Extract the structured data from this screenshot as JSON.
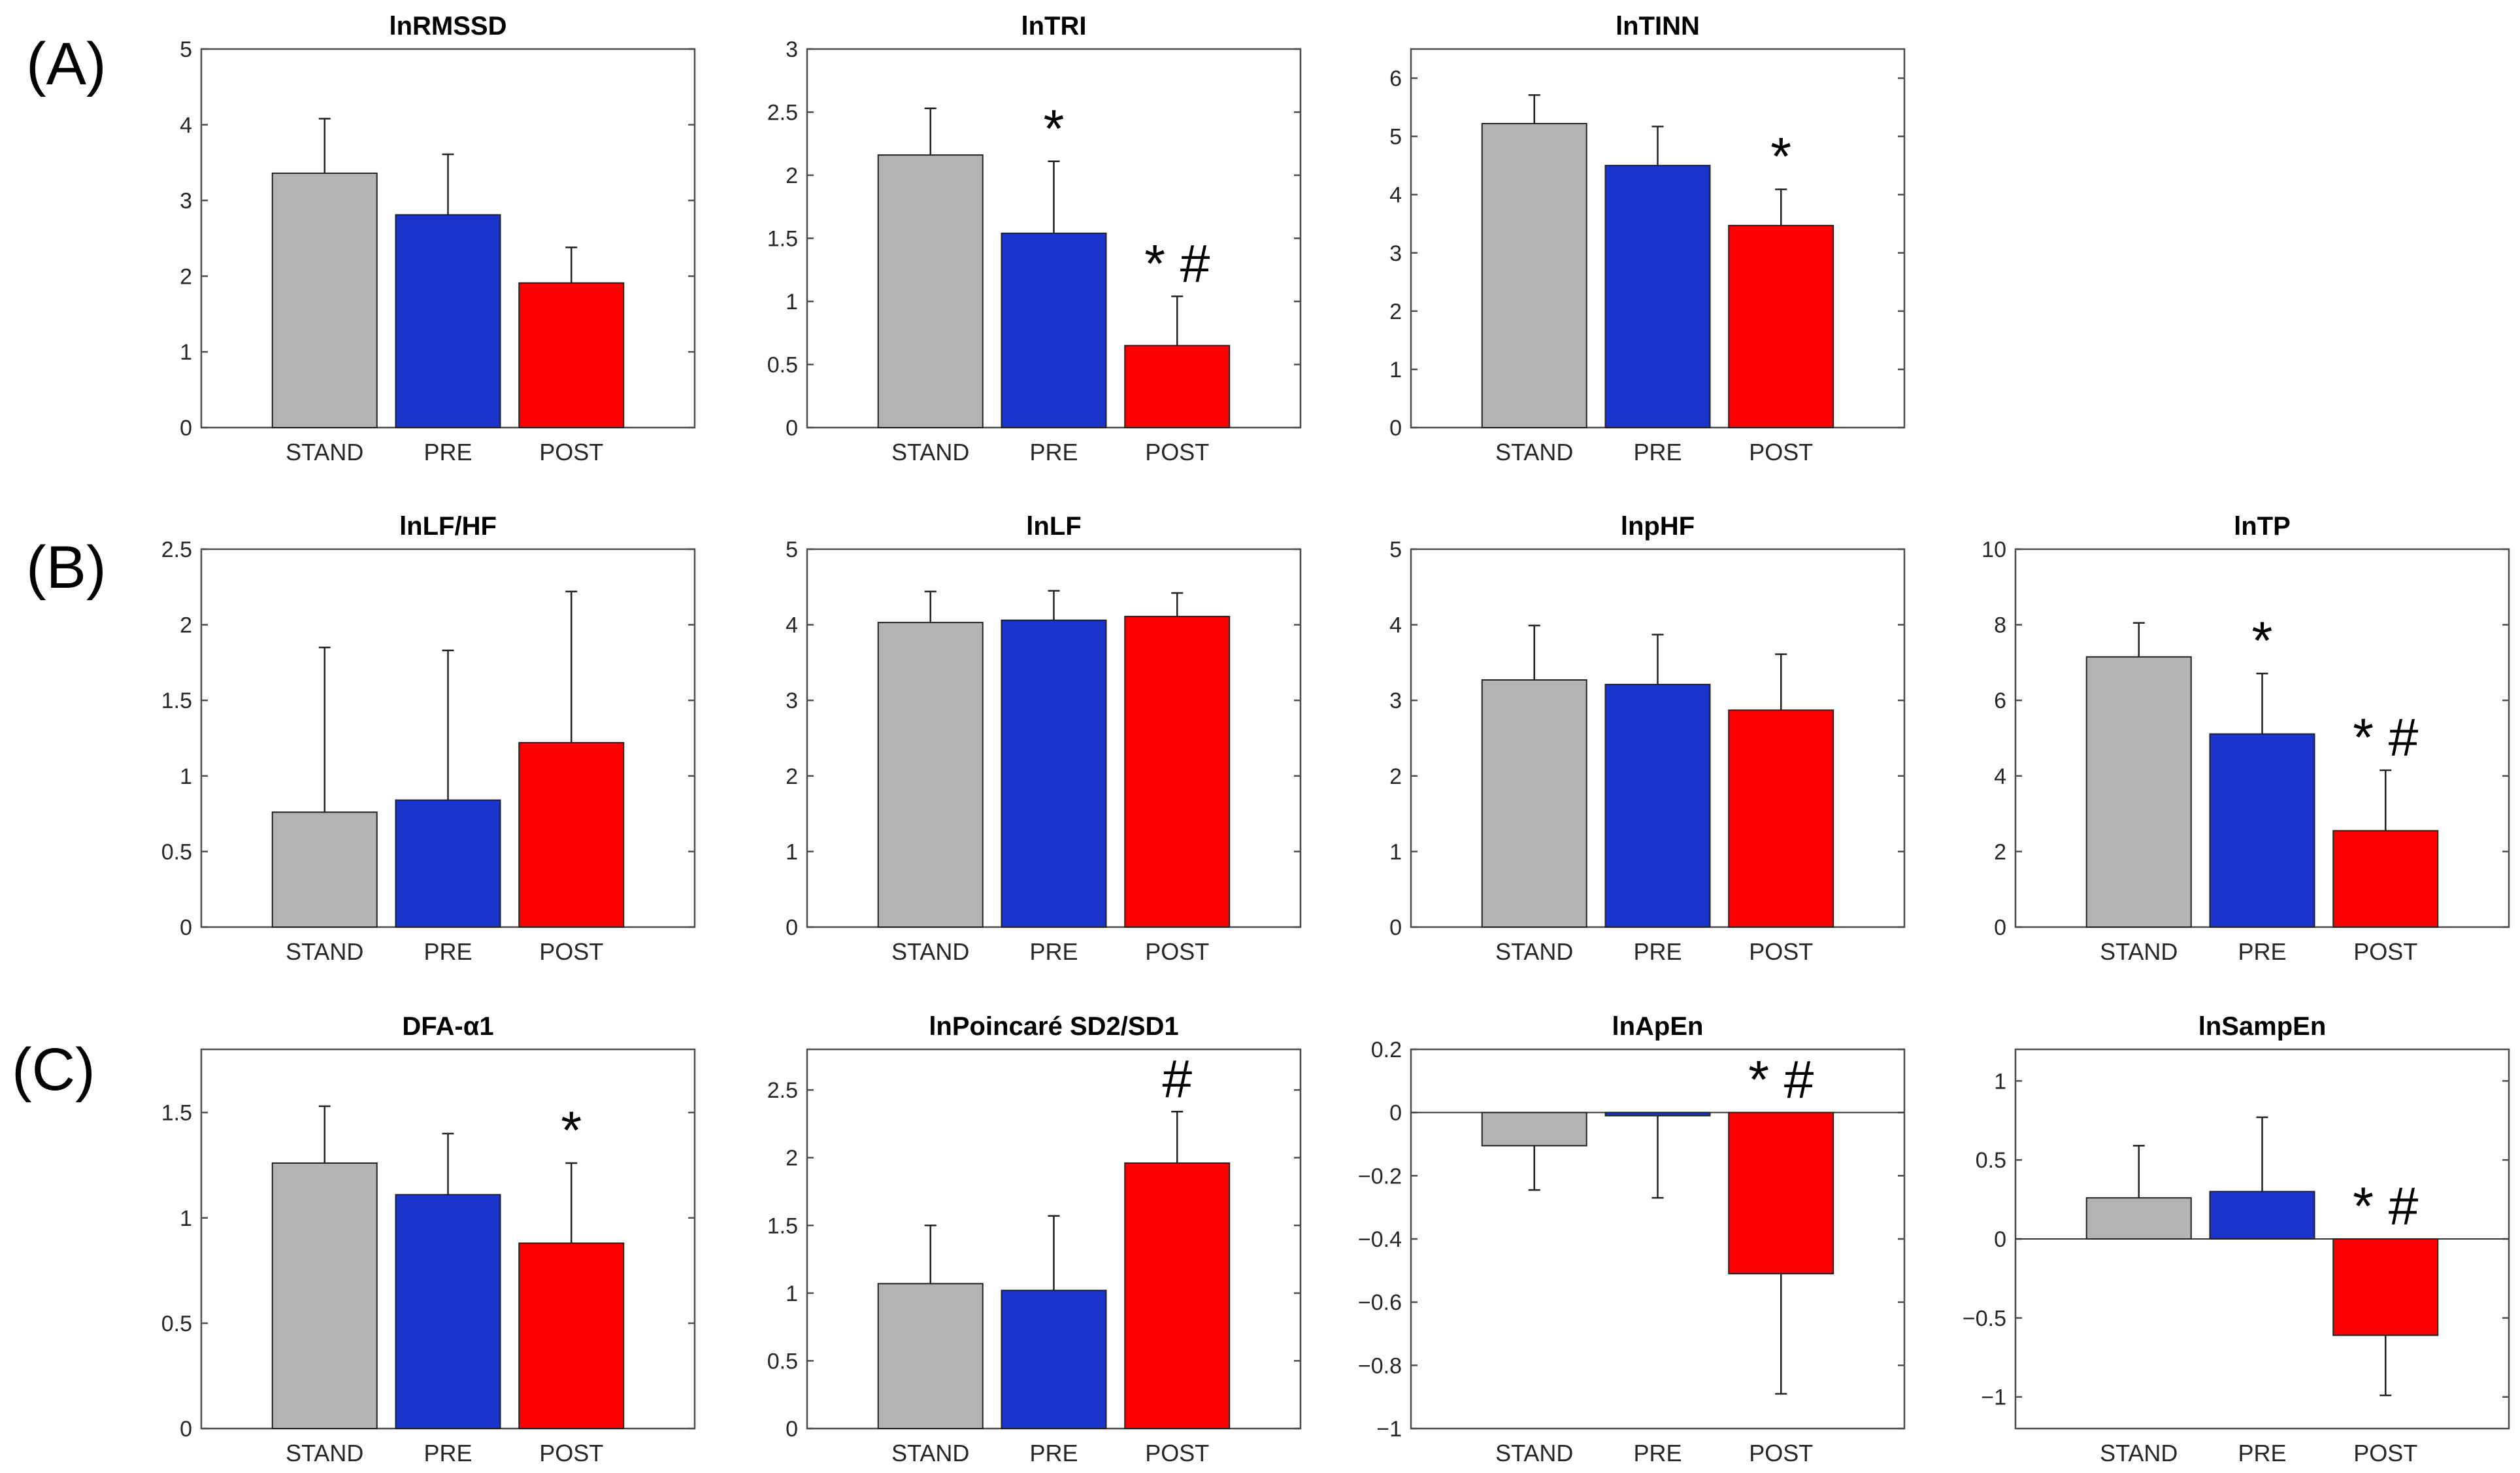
{
  "row_labels": [
    "(A)",
    "(B)",
    "(C)"
  ],
  "colors": {
    "STAND": "#b3b3b3",
    "PRE": "#1a33cc",
    "POST": "#ff0000",
    "axis": "#4d4d4d",
    "text": "#262626"
  },
  "chart_data": [
    {
      "type": "bar",
      "title": "lnRMSSD",
      "categories": [
        "STAND",
        "PRE",
        "POST"
      ],
      "values": [
        3.36,
        2.81,
        1.91
      ],
      "errors": [
        0.72,
        0.8,
        0.47
      ],
      "ylim": [
        0,
        5
      ],
      "ticks": [
        0,
        1,
        2,
        3,
        4,
        5
      ],
      "tick_labels": [
        "0",
        "1",
        "2",
        "3",
        "4",
        "5"
      ],
      "annotations": [
        "",
        "",
        ""
      ]
    },
    {
      "type": "bar",
      "title": "lnTRI",
      "categories": [
        "STAND",
        "PRE",
        "POST"
      ],
      "values": [
        2.16,
        1.54,
        0.65
      ],
      "errors": [
        0.37,
        0.57,
        0.39
      ],
      "ylim": [
        0,
        3
      ],
      "ticks": [
        0,
        0.5,
        1,
        1.5,
        2,
        2.5,
        3
      ],
      "tick_labels": [
        "0",
        "0.5",
        "1",
        "1.5",
        "2",
        "2.5",
        "3"
      ],
      "annotations": [
        "",
        "*",
        "*#"
      ]
    },
    {
      "type": "bar",
      "title": "lnTINN",
      "categories": [
        "STAND",
        "PRE",
        "POST"
      ],
      "values": [
        5.22,
        4.5,
        3.47
      ],
      "errors": [
        0.49,
        0.67,
        0.62
      ],
      "ylim": [
        0,
        6.5
      ],
      "ticks": [
        0,
        1,
        2,
        3,
        4,
        5,
        6
      ],
      "tick_labels": [
        "0",
        "1",
        "2",
        "3",
        "4",
        "5",
        "6"
      ],
      "annotations": [
        "",
        "",
        "*"
      ]
    },
    {
      "type": "bar",
      "title": "lnLF/HF",
      "categories": [
        "STAND",
        "PRE",
        "POST"
      ],
      "values": [
        0.76,
        0.84,
        1.22
      ],
      "errors": [
        1.09,
        0.99,
        1.0
      ],
      "ylim": [
        0,
        2.5
      ],
      "ticks": [
        0,
        0.5,
        1,
        1.5,
        2,
        2.5
      ],
      "tick_labels": [
        "0",
        "0.5",
        "1",
        "1.5",
        "2",
        "2.5"
      ],
      "annotations": [
        "",
        "",
        ""
      ]
    },
    {
      "type": "bar",
      "title": "lnLF",
      "categories": [
        "STAND",
        "PRE",
        "POST"
      ],
      "values": [
        4.03,
        4.06,
        4.11
      ],
      "errors": [
        0.41,
        0.39,
        0.31
      ],
      "ylim": [
        0,
        5
      ],
      "ticks": [
        0,
        1,
        2,
        3,
        4,
        5
      ],
      "tick_labels": [
        "0",
        "1",
        "2",
        "3",
        "4",
        "5"
      ],
      "annotations": [
        "",
        "",
        ""
      ]
    },
    {
      "type": "bar",
      "title": "lnpHF",
      "categories": [
        "STAND",
        "PRE",
        "POST"
      ],
      "values": [
        3.27,
        3.21,
        2.87
      ],
      "errors": [
        0.72,
        0.66,
        0.74
      ],
      "ylim": [
        0,
        5
      ],
      "ticks": [
        0,
        1,
        2,
        3,
        4,
        5
      ],
      "tick_labels": [
        "0",
        "1",
        "2",
        "3",
        "4",
        "5"
      ],
      "annotations": [
        "",
        "",
        ""
      ]
    },
    {
      "type": "bar",
      "title": "lnTP",
      "categories": [
        "STAND",
        "PRE",
        "POST"
      ],
      "values": [
        7.15,
        5.11,
        2.55
      ],
      "errors": [
        0.9,
        1.6,
        1.6
      ],
      "ylim": [
        0,
        10
      ],
      "ticks": [
        0,
        2,
        4,
        6,
        8,
        10
      ],
      "tick_labels": [
        "0",
        "2",
        "4",
        "6",
        "8",
        "10"
      ],
      "annotations": [
        "",
        "*",
        "*#"
      ]
    },
    {
      "type": "bar",
      "title": "DFA-α1",
      "categories": [
        "STAND",
        "PRE",
        "POST"
      ],
      "values": [
        1.26,
        1.11,
        0.88
      ],
      "errors": [
        0.27,
        0.29,
        0.38
      ],
      "ylim": [
        0,
        1.8
      ],
      "ticks": [
        0,
        0.5,
        1,
        1.5
      ],
      "tick_labels": [
        "0",
        "0.5",
        "1",
        "1.5"
      ],
      "annotations": [
        "",
        "",
        "*"
      ]
    },
    {
      "type": "bar",
      "title": "lnPoincaré SD2/SD1",
      "categories": [
        "STAND",
        "PRE",
        "POST"
      ],
      "values": [
        1.07,
        1.02,
        1.96
      ],
      "errors": [
        0.43,
        0.55,
        0.38
      ],
      "ylim": [
        0,
        2.8
      ],
      "ticks": [
        0,
        0.5,
        1,
        1.5,
        2,
        2.5
      ],
      "tick_labels": [
        "0",
        "0.5",
        "1",
        "1.5",
        "2",
        "2.5"
      ],
      "annotations": [
        "",
        "",
        "#"
      ]
    },
    {
      "type": "bar",
      "title": "lnApEn",
      "categories": [
        "STAND",
        "PRE",
        "POST"
      ],
      "values": [
        -0.105,
        -0.01,
        -0.51
      ],
      "errors": [
        0.14,
        0.26,
        0.38
      ],
      "ylim": [
        -1,
        0.2
      ],
      "ticks": [
        -1,
        -0.8,
        -0.6,
        -0.4,
        -0.2,
        0,
        0.2
      ],
      "tick_labels": [
        "−1",
        "−0.8",
        "−0.6",
        "−0.4",
        "−0.2",
        "0",
        "0.2"
      ],
      "zero_line": true,
      "annotations": [
        "",
        "",
        "*#"
      ]
    },
    {
      "type": "bar",
      "title": "lnSampEn",
      "categories": [
        "STAND",
        "PRE",
        "POST"
      ],
      "values": [
        0.26,
        0.3,
        -0.61
      ],
      "errors": [
        0.33,
        0.47,
        0.38
      ],
      "ylim": [
        -1.2,
        1.2
      ],
      "ticks": [
        -1,
        -0.5,
        0,
        0.5,
        1
      ],
      "tick_labels": [
        "−1",
        "−0.5",
        "0",
        "0.5",
        "1"
      ],
      "zero_line": true,
      "annotations": [
        "",
        "",
        "*#"
      ]
    }
  ]
}
